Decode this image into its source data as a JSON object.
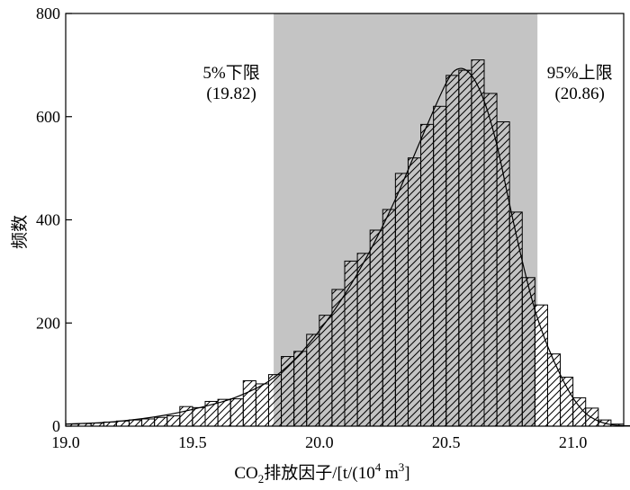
{
  "chart_data": {
    "type": "bar",
    "title": "",
    "xlabel": "CO₂排放因子/[t/(10⁴ m³]",
    "xlabel_parts": {
      "pre": "CO",
      "sub": "2",
      "mid": "排放因子/[t/(10",
      "sup4": "4",
      "m": " m",
      "sup3": "3",
      "post": "]"
    },
    "ylabel": "频数",
    "xlim": [
      19.0,
      21.2
    ],
    "ylim": [
      0,
      800
    ],
    "x_ticks": [
      "19.0",
      "19.5",
      "20.0",
      "20.5",
      "21.0"
    ],
    "y_ticks": [
      "0",
      "200",
      "400",
      "600",
      "800"
    ],
    "bin_start": 19.0,
    "bin_width": 0.05,
    "values": [
      4,
      5,
      6,
      8,
      10,
      12,
      14,
      17,
      20,
      38,
      36,
      48,
      52,
      53,
      88,
      82,
      100,
      135,
      145,
      178,
      215,
      265,
      320,
      335,
      380,
      420,
      490,
      520,
      585,
      620,
      680,
      690,
      710,
      645,
      590,
      415,
      288,
      235,
      140,
      95,
      55,
      35,
      12,
      4,
      1
    ],
    "curve": [
      [
        19.0,
        4
      ],
      [
        19.2,
        9
      ],
      [
        19.4,
        22
      ],
      [
        19.6,
        45
      ],
      [
        19.7,
        62
      ],
      [
        19.8,
        87
      ],
      [
        19.9,
        128
      ],
      [
        20.0,
        185
      ],
      [
        20.1,
        255
      ],
      [
        20.2,
        340
      ],
      [
        20.3,
        440
      ],
      [
        20.4,
        555
      ],
      [
        20.5,
        665
      ],
      [
        20.55,
        693
      ],
      [
        20.6,
        680
      ],
      [
        20.65,
        630
      ],
      [
        20.7,
        545
      ],
      [
        20.75,
        430
      ],
      [
        20.8,
        320
      ],
      [
        20.85,
        225
      ],
      [
        20.9,
        155
      ],
      [
        20.95,
        100
      ],
      [
        21.0,
        55
      ],
      [
        21.05,
        25
      ],
      [
        21.1,
        10
      ],
      [
        21.15,
        3
      ],
      [
        21.2,
        1
      ]
    ],
    "lower_limit": {
      "x": 19.82,
      "label": "5%下限",
      "value": "(19.82)"
    },
    "upper_limit": {
      "x": 20.86,
      "label": "95%上限",
      "value": "(20.86)"
    },
    "colors": {
      "band": "#c4c4c4",
      "bar_fill": "#ffffff",
      "stroke": "#000000"
    }
  }
}
